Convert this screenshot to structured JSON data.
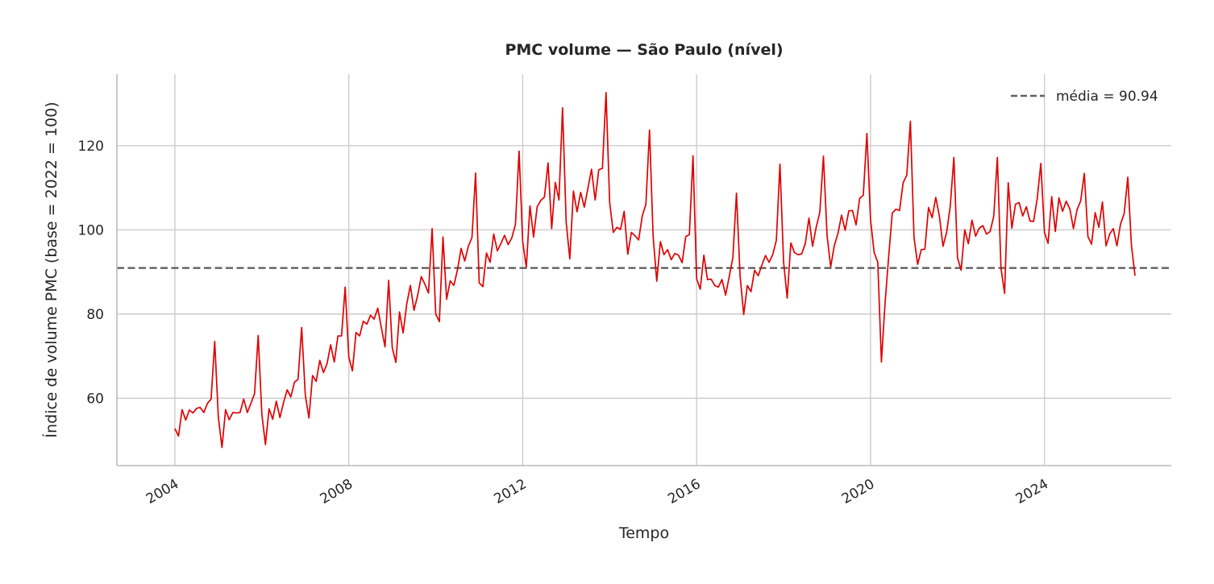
{
  "chart_data": {
    "type": "line",
    "title": "PMC volume — São Paulo (nível)",
    "xlabel": "Tempo",
    "ylabel": "Índice de volume PMC (base = 2022 = 100)",
    "xlim": [
      "2002-09-01",
      "2026-12-01"
    ],
    "ylim": [
      44,
      137
    ],
    "xticks": [
      "2004",
      "2008",
      "2012",
      "2016",
      "2020",
      "2024"
    ],
    "yticks": [
      60,
      80,
      100,
      120
    ],
    "grid": true,
    "legend_position": "top-right",
    "mean": {
      "value": 90.94,
      "label": "média = 90.94",
      "color": "#606060",
      "style": "dashed"
    },
    "series": [
      {
        "color": "#e00000",
        "x": [
          "2004-01",
          "2004-02",
          "2004-03",
          "2004-04",
          "2004-05",
          "2004-06",
          "2004-07",
          "2004-08",
          "2004-09",
          "2004-10",
          "2004-11",
          "2004-12",
          "2005-01",
          "2005-02",
          "2005-03",
          "2005-04",
          "2005-05",
          "2005-06",
          "2005-07",
          "2005-08",
          "2005-09",
          "2005-10",
          "2005-11",
          "2005-12",
          "2006-01",
          "2006-02",
          "2006-03",
          "2006-04",
          "2006-05",
          "2006-06",
          "2006-07",
          "2006-08",
          "2006-09",
          "2006-10",
          "2006-11",
          "2006-12",
          "2007-01",
          "2007-02",
          "2007-03",
          "2007-04",
          "2007-05",
          "2007-06",
          "2007-07",
          "2007-08",
          "2007-09",
          "2007-10",
          "2007-11",
          "2007-12",
          "2008-01",
          "2008-02",
          "2008-03",
          "2008-04",
          "2008-05",
          "2008-06",
          "2008-07",
          "2008-08",
          "2008-09",
          "2008-10",
          "2008-11",
          "2008-12",
          "2009-01",
          "2009-02",
          "2009-03",
          "2009-04",
          "2009-05",
          "2009-06",
          "2009-07",
          "2009-08",
          "2009-09",
          "2009-10",
          "2009-11",
          "2009-12",
          "2010-01",
          "2010-02",
          "2010-03",
          "2010-04",
          "2010-05",
          "2010-06",
          "2010-07",
          "2010-08",
          "2010-09",
          "2010-10",
          "2010-11",
          "2010-12",
          "2011-01",
          "2011-02",
          "2011-03",
          "2011-04",
          "2011-05",
          "2011-06",
          "2011-07",
          "2011-08",
          "2011-09",
          "2011-10",
          "2011-11",
          "2011-12",
          "2012-01",
          "2012-02",
          "2012-03",
          "2012-04",
          "2012-05",
          "2012-06",
          "2012-07",
          "2012-08",
          "2012-09",
          "2012-10",
          "2012-11",
          "2012-12",
          "2013-01",
          "2013-02",
          "2013-03",
          "2013-04",
          "2013-05",
          "2013-06",
          "2013-07",
          "2013-08",
          "2013-09",
          "2013-10",
          "2013-11",
          "2013-12",
          "2014-01",
          "2014-02",
          "2014-03",
          "2014-04",
          "2014-05",
          "2014-06",
          "2014-07",
          "2014-08",
          "2014-09",
          "2014-10",
          "2014-11",
          "2014-12",
          "2015-01",
          "2015-02",
          "2015-03",
          "2015-04",
          "2015-05",
          "2015-06",
          "2015-07",
          "2015-08",
          "2015-09",
          "2015-10",
          "2015-11",
          "2015-12",
          "2016-01",
          "2016-02",
          "2016-03",
          "2016-04",
          "2016-05",
          "2016-06",
          "2016-07",
          "2016-08",
          "2016-09",
          "2016-10",
          "2016-11",
          "2016-12",
          "2017-01",
          "2017-02",
          "2017-03",
          "2017-04",
          "2017-05",
          "2017-06",
          "2017-07",
          "2017-08",
          "2017-09",
          "2017-10",
          "2017-11",
          "2017-12",
          "2018-01",
          "2018-02",
          "2018-03",
          "2018-04",
          "2018-05",
          "2018-06",
          "2018-07",
          "2018-08",
          "2018-09",
          "2018-10",
          "2018-11",
          "2018-12",
          "2019-01",
          "2019-02",
          "2019-03",
          "2019-04",
          "2019-05",
          "2019-06",
          "2019-07",
          "2019-08",
          "2019-09",
          "2019-10",
          "2019-11",
          "2019-12",
          "2020-01",
          "2020-02",
          "2020-03",
          "2020-04",
          "2020-05",
          "2020-06",
          "2020-07",
          "2020-08",
          "2020-09",
          "2020-10",
          "2020-11",
          "2020-12",
          "2021-01",
          "2021-02",
          "2021-03",
          "2021-04",
          "2021-05",
          "2021-06",
          "2021-07",
          "2021-08",
          "2021-09",
          "2021-10",
          "2021-11",
          "2021-12",
          "2022-01",
          "2022-02",
          "2022-03",
          "2022-04",
          "2022-05",
          "2022-06",
          "2022-07",
          "2022-08",
          "2022-09",
          "2022-10",
          "2022-11",
          "2022-12",
          "2023-01",
          "2023-02",
          "2023-03",
          "2023-04",
          "2023-05",
          "2023-06",
          "2023-07",
          "2023-08",
          "2023-09",
          "2023-10",
          "2023-11",
          "2023-12",
          "2024-01",
          "2024-02",
          "2024-03",
          "2024-04",
          "2024-05",
          "2024-06",
          "2024-07",
          "2024-08",
          "2024-09",
          "2024-10",
          "2024-11",
          "2024-12",
          "2025-01",
          "2025-02",
          "2025-03",
          "2025-04",
          "2025-05",
          "2025-06",
          "2025-07",
          "2025-08",
          "2025-09",
          "2025-10",
          "2025-11",
          "2025-12",
          "2026-01",
          "2026-02"
        ],
        "values": [
          52.8,
          51.0,
          57.3,
          54.8,
          57.2,
          56.5,
          57.6,
          57.8,
          56.6,
          58.8,
          59.8,
          73.5,
          55.5,
          48.3,
          57.3,
          54.9,
          56.6,
          56.5,
          56.6,
          59.8,
          56.6,
          58.8,
          61.1,
          74.9,
          56.3,
          49.0,
          57.5,
          55.0,
          59.3,
          55.4,
          59.0,
          62.0,
          60.3,
          63.8,
          64.5,
          76.8,
          60.8,
          55.3,
          65.4,
          64.0,
          69.0,
          66.1,
          68.2,
          72.7,
          68.6,
          74.8,
          74.8,
          86.4,
          69.8,
          66.5,
          75.6,
          74.8,
          78.3,
          77.6,
          79.7,
          78.8,
          81.4,
          76.7,
          72.2,
          88.0,
          72.0,
          68.5,
          80.5,
          75.5,
          82.4,
          86.8,
          80.9,
          84.4,
          88.9,
          87.1,
          85.0,
          100.3,
          80.0,
          78.2,
          98.3,
          83.5,
          87.9,
          86.8,
          90.5,
          95.6,
          92.6,
          96.1,
          98.2,
          113.5,
          87.4,
          86.5,
          94.5,
          92.3,
          99.0,
          95.0,
          96.8,
          98.7,
          96.5,
          98.1,
          101.3,
          118.7,
          97.2,
          91.1,
          105.7,
          98.3,
          105.5,
          107.0,
          107.8,
          115.9,
          100.3,
          111.3,
          107.1,
          129.0,
          101.8,
          93.1,
          109.2,
          104.3,
          108.9,
          105.4,
          109.9,
          114.4,
          107.1,
          114.3,
          114.6,
          132.6,
          106.5,
          99.4,
          100.6,
          100.1,
          104.4,
          94.2,
          99.4,
          98.6,
          97.6,
          103.3,
          106.1,
          123.7,
          98.4,
          87.8,
          97.2,
          94.1,
          95.3,
          92.9,
          94.4,
          94.0,
          92.2,
          98.4,
          98.9,
          117.6,
          88.4,
          85.9,
          94.0,
          88.2,
          88.3,
          86.8,
          86.4,
          88.2,
          84.5,
          88.9,
          93.4,
          108.7,
          89.0,
          79.9,
          86.8,
          85.3,
          90.4,
          89.1,
          91.6,
          93.9,
          92.3,
          94.1,
          97.5,
          115.6,
          92.4,
          83.8,
          96.9,
          94.6,
          94.1,
          94.3,
          96.8,
          102.8,
          96.1,
          100.6,
          104.2,
          117.5,
          98.7,
          91.2,
          96.3,
          99.1,
          103.5,
          99.9,
          104.5,
          104.6,
          101.2,
          107.5,
          108.2,
          122.9,
          102.4,
          94.6,
          92.3,
          68.6,
          82.5,
          93.6,
          104.0,
          104.9,
          104.6,
          111.2,
          113.0,
          125.8,
          98.2,
          91.8,
          95.3,
          95.4,
          105.3,
          102.9,
          107.7,
          103.3,
          96.1,
          99.4,
          105.6,
          117.2,
          93.4,
          90.4,
          100.0,
          96.7,
          102.3,
          98.5,
          100.4,
          101.0,
          99.0,
          99.6,
          103.2,
          117.2,
          90.9,
          84.9,
          111.2,
          100.4,
          106.1,
          106.5,
          103.3,
          105.5,
          102.1,
          102.0,
          107.4,
          115.8,
          99.4,
          96.8,
          107.9,
          99.6,
          107.6,
          104.4,
          106.8,
          105.0,
          100.3,
          104.8,
          106.9,
          113.4,
          98.4,
          96.6,
          104.1,
          100.6,
          106.6,
          96.2,
          99.0,
          100.3,
          96.2,
          101.4,
          103.9,
          112.5,
          96.3,
          89.1
        ]
      }
    ]
  }
}
